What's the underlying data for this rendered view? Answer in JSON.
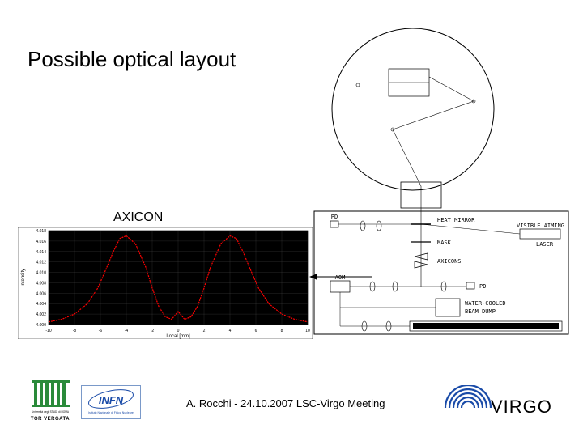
{
  "title": "Possible optical layout",
  "axicon_label": "AXICON",
  "footer_text": "A. Rocchi - 24.10.2007 LSC-Virgo Meeting",
  "chart": {
    "type": "line",
    "background_color": "#000000",
    "grid_color": "#666666",
    "line_color": "#ff0000",
    "axis_color": "#000000",
    "xlim": [
      -10,
      10
    ],
    "ylim": [
      4.0,
      4.018
    ],
    "xticks": [
      -10,
      -8,
      -6,
      -4,
      -2,
      0,
      2,
      4,
      6,
      8,
      10
    ],
    "yticks": [
      4.0,
      4.002,
      4.004,
      4.006,
      4.008,
      4.01,
      4.012,
      4.014,
      4.016,
      4.018
    ],
    "xlabel": "Local [mm]",
    "ylabel": "Intensity",
    "label_fontsize": 6,
    "tick_fontsize": 5,
    "data_x": [
      -10,
      -9,
      -8,
      -7,
      -6.2,
      -5.5,
      -5,
      -4.5,
      -4,
      -3.3,
      -2.5,
      -2,
      -1.5,
      -1,
      -0.5,
      0,
      0.5,
      1,
      1.5,
      2,
      2.5,
      3.3,
      4,
      4.5,
      5,
      5.5,
      6.2,
      7,
      8,
      9,
      10
    ],
    "data_y": [
      4.0005,
      4.001,
      4.002,
      4.004,
      4.007,
      4.011,
      4.014,
      4.0165,
      4.017,
      4.0155,
      4.011,
      4.007,
      4.0035,
      4.0015,
      4.001,
      4.0025,
      4.001,
      4.0015,
      4.0035,
      4.007,
      4.011,
      4.0155,
      4.017,
      4.0165,
      4.014,
      4.011,
      4.007,
      4.004,
      4.002,
      4.001,
      4.0005
    ]
  },
  "optical": {
    "circle_stroke": "#000000",
    "box_stroke": "#000000",
    "label_font_size": 7,
    "labels": {
      "pd1": "PD",
      "heat_mirror": "HEAT MIRROR",
      "visible_aiming": "VISIBLE AIMING",
      "laser": "LASER",
      "mask": "MASK",
      "axicons": "AXICONS",
      "aom": "AOM",
      "pd2": "PD",
      "water_cooled": "WATER-COOLED",
      "beam_dump": "BEAM DUMP"
    }
  },
  "logos": {
    "tor_vergata_text_top": "Università degli STUDI di ROMA",
    "tor_vergata_text_bottom": "TOR VERGATA",
    "tor_green": "#2a8a3a",
    "infn_blue": "#1a4ba8",
    "infn_text": "INFN",
    "infn_sub": "Istituto Nazionale di Fisica Nucleare",
    "virgo_text": "VIRGO",
    "virgo_arc_color": "#1a4ba8"
  }
}
